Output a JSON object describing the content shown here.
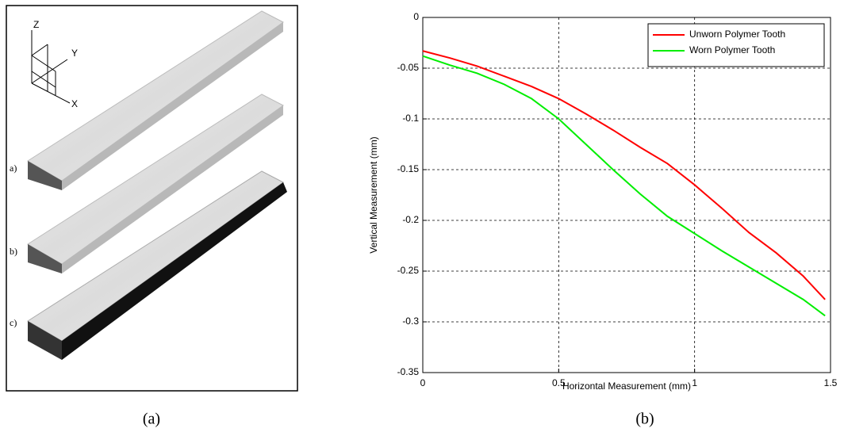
{
  "panel_a": {
    "axis_labels": [
      "Z",
      "Y",
      "X"
    ],
    "item_labels": [
      "a)",
      "b)",
      "c)"
    ],
    "caption": "(a)"
  },
  "chart_data": {
    "type": "line",
    "caption": "(b)",
    "x_label": "Horizontal Measurement (mm)",
    "y_label": "Vertical Measurement (mm)",
    "x": [
      0,
      0.1,
      0.2,
      0.3,
      0.4,
      0.5,
      0.6,
      0.7,
      0.8,
      0.9,
      1.0,
      1.1,
      1.2,
      1.3,
      1.4,
      1.48
    ],
    "series": [
      {
        "name": "Unworn Polymer Tooth",
        "color": "#ff0000",
        "values": [
          -0.033,
          -0.04,
          -0.048,
          -0.058,
          -0.068,
          -0.08,
          -0.095,
          -0.111,
          -0.128,
          -0.144,
          -0.165,
          -0.188,
          -0.212,
          -0.232,
          -0.255,
          -0.278
        ]
      },
      {
        "name": "Worn Polymer Tooth",
        "color": "#00ee00",
        "values": [
          -0.038,
          -0.047,
          -0.055,
          -0.066,
          -0.08,
          -0.1,
          -0.125,
          -0.15,
          -0.174,
          -0.196,
          -0.213,
          -0.23,
          -0.246,
          -0.262,
          -0.278,
          -0.294
        ]
      }
    ],
    "xlim": [
      0,
      1.5
    ],
    "xticks": [
      0,
      0.5,
      1,
      1.5
    ],
    "ylim": [
      -0.35,
      0
    ],
    "yticks": [
      -0.35,
      -0.3,
      -0.25,
      -0.2,
      -0.15,
      -0.1,
      -0.05,
      0
    ],
    "grid": true,
    "legend": "upper right"
  }
}
